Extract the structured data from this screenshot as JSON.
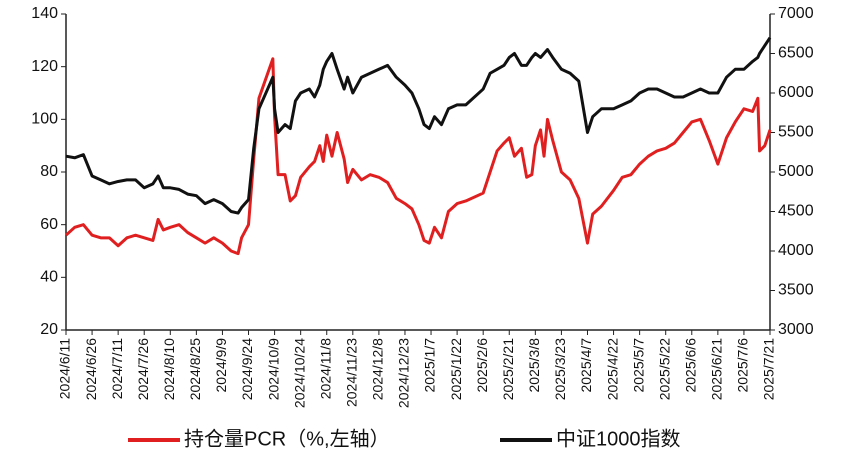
{
  "chart_data": {
    "type": "line",
    "x": [
      "2024/6/11",
      "2024/6/16",
      "2024/6/21",
      "2024/6/26",
      "2024/7/1",
      "2024/7/6",
      "2024/7/11",
      "2024/7/16",
      "2024/7/21",
      "2024/7/26",
      "2024/7/31",
      "2024/8/3",
      "2024/8/6",
      "2024/8/10",
      "2024/8/15",
      "2024/8/20",
      "2024/8/25",
      "2024/8/30",
      "2024/9/4",
      "2024/9/9",
      "2024/9/14",
      "2024/9/18",
      "2024/9/20",
      "2024/9/24",
      "2024/9/27",
      "2024/9/30",
      "2024/10/8",
      "2024/10/9",
      "2024/10/11",
      "2024/10/15",
      "2024/10/18",
      "2024/10/21",
      "2024/10/24",
      "2024/10/29",
      "2024/11/1",
      "2024/11/4",
      "2024/11/6",
      "2024/11/8",
      "2024/11/11",
      "2024/11/14",
      "2024/11/18",
      "2024/11/20",
      "2024/11/23",
      "2024/11/28",
      "2024/12/3",
      "2024/12/8",
      "2024/12/13",
      "2024/12/18",
      "2024/12/23",
      "2024/12/27",
      "2024/12/31",
      "2025/1/3",
      "2025/1/6",
      "2025/1/9",
      "2025/1/13",
      "2025/1/17",
      "2025/1/22",
      "2025/1/27",
      "2025/2/6",
      "2025/2/10",
      "2025/2/14",
      "2025/2/18",
      "2025/2/21",
      "2025/2/24",
      "2025/2/28",
      "2025/3/3",
      "2025/3/6",
      "2025/3/8",
      "2025/3/11",
      "2025/3/13",
      "2025/3/15",
      "2025/3/18",
      "2025/3/23",
      "2025/3/28",
      "2025/4/2",
      "2025/4/7",
      "2025/4/10",
      "2025/4/15",
      "2025/4/22",
      "2025/4/27",
      "2025/5/2",
      "2025/5/7",
      "2025/5/12",
      "2025/5/17",
      "2025/5/22",
      "2025/5/27",
      "2025/6/1",
      "2025/6/6",
      "2025/6/11",
      "2025/6/16",
      "2025/6/21",
      "2025/6/26",
      "2025/7/1",
      "2025/7/6",
      "2025/7/11",
      "2025/7/14",
      "2025/7/15",
      "2025/7/18",
      "2025/7/21"
    ],
    "series": [
      {
        "name": "持仓量PCR（%,左轴）",
        "color": "#e02020",
        "values": [
          56,
          59,
          60,
          56,
          55,
          55,
          52,
          55,
          56,
          55,
          54,
          62,
          58,
          59,
          60,
          57,
          55,
          53,
          55,
          53,
          50,
          49,
          55,
          60,
          85,
          108,
          123,
          101,
          79,
          79,
          69,
          71,
          78,
          82,
          84,
          90,
          84,
          94,
          86,
          95,
          85,
          76,
          81,
          77,
          79,
          78,
          76,
          70,
          68,
          66,
          60,
          54,
          53,
          59,
          55,
          65,
          68,
          69,
          72,
          80,
          88,
          91,
          93,
          86,
          89,
          78,
          79,
          90,
          96,
          86,
          100,
          92,
          80,
          77,
          70,
          53,
          64,
          67,
          73,
          78,
          79,
          83,
          86,
          88,
          89,
          91,
          95,
          99,
          100,
          92,
          83,
          93,
          99,
          104,
          103,
          108,
          88,
          90,
          96
        ]
      },
      {
        "name": "中证1000指数",
        "color": "#111111",
        "axis": "y2",
        "values": [
          5200,
          5180,
          5220,
          4950,
          4900,
          4850,
          4880,
          4900,
          4900,
          4800,
          4850,
          4950,
          4800,
          4800,
          4780,
          4720,
          4700,
          4600,
          4650,
          4600,
          4500,
          4480,
          4550,
          4650,
          5300,
          5800,
          6200,
          5800,
          5500,
          5600,
          5550,
          5900,
          6000,
          6050,
          5950,
          6100,
          6300,
          6400,
          6500,
          6300,
          6050,
          6200,
          6000,
          6200,
          6250,
          6300,
          6350,
          6200,
          6100,
          6000,
          5800,
          5600,
          5550,
          5700,
          5600,
          5800,
          5850,
          5850,
          6050,
          6250,
          6300,
          6350,
          6450,
          6500,
          6350,
          6350,
          6450,
          6500,
          6450,
          6500,
          6550,
          6450,
          6300,
          6250,
          6150,
          5500,
          5700,
          5800,
          5800,
          5850,
          5900,
          6000,
          6050,
          6050,
          6000,
          5950,
          5950,
          6000,
          6050,
          6000,
          6000,
          6200,
          6300,
          6300,
          6400,
          6450,
          6500,
          6600,
          6700
        ]
      }
    ],
    "xlim": [
      "2024/6/11",
      "2025/7/21"
    ],
    "xticks": [
      "2024/6/11",
      "2024/6/26",
      "2024/7/11",
      "2024/7/26",
      "2024/8/10",
      "2024/8/25",
      "2024/9/9",
      "2024/9/24",
      "2024/10/9",
      "2024/10/24",
      "2024/11/8",
      "2024/11/23",
      "2024/12/8",
      "2024/12/23",
      "2025/1/7",
      "2025/1/22",
      "2025/2/6",
      "2025/2/21",
      "2025/3/8",
      "2025/3/23",
      "2025/4/7",
      "2025/4/22",
      "2025/5/7",
      "2025/5/22",
      "2025/6/6",
      "2025/6/21",
      "2025/7/6",
      "2025/7/21"
    ],
    "ylim": [
      20,
      140
    ],
    "yticks": [
      20,
      40,
      60,
      80,
      100,
      120,
      140
    ],
    "y2lim": [
      3000,
      7000
    ],
    "y2ticks": [
      3000,
      3500,
      4000,
      4500,
      5000,
      5500,
      6000,
      6500,
      7000
    ],
    "legend": "bottom"
  }
}
